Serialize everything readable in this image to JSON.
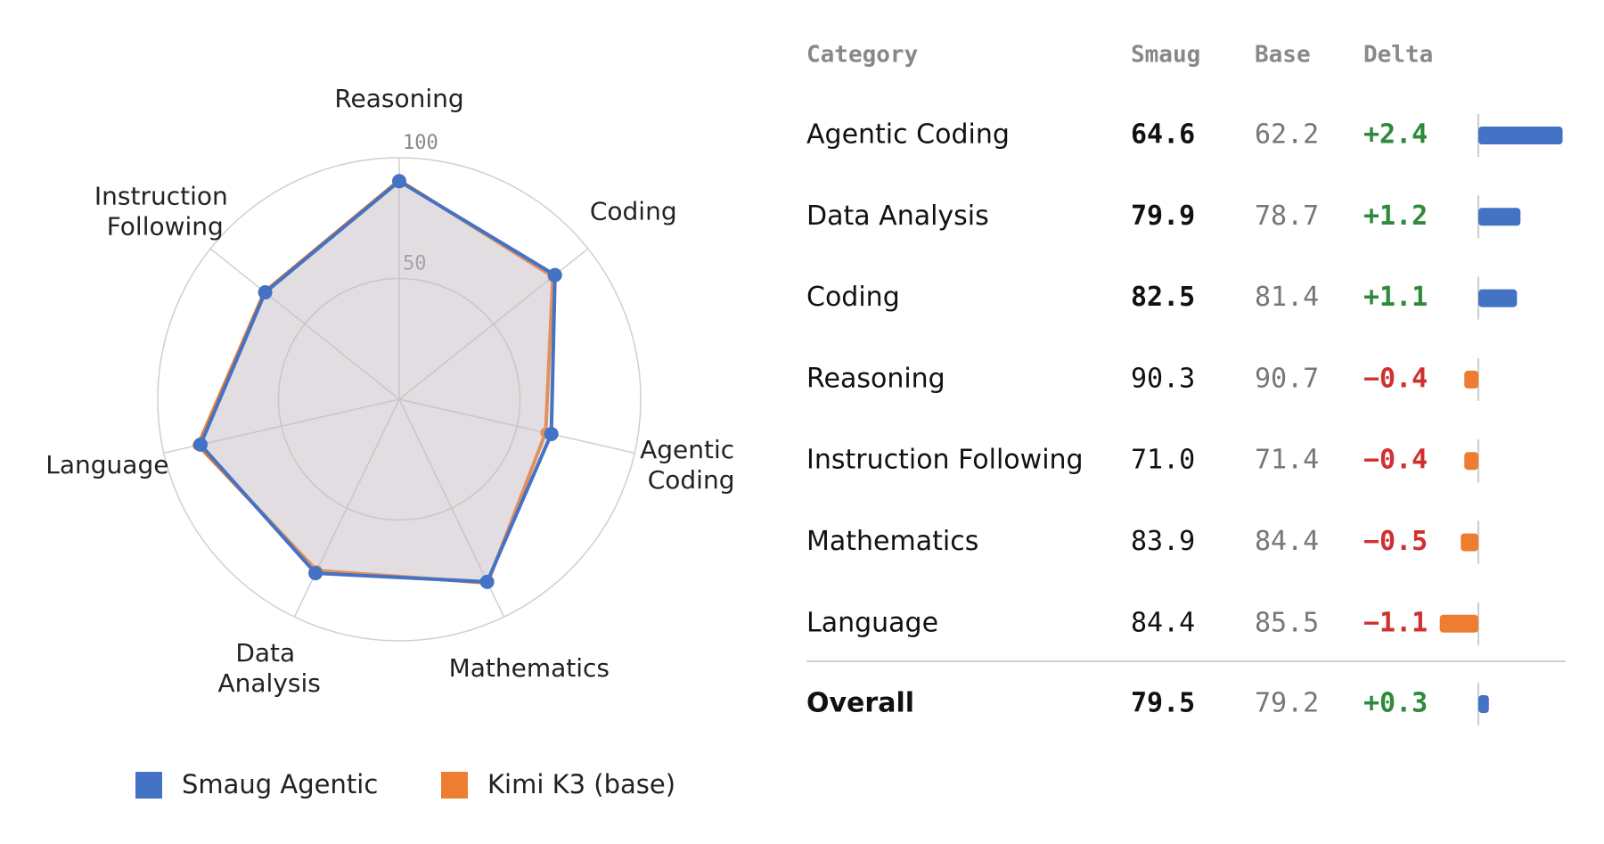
{
  "chart_data": {
    "type": "radar",
    "categories": [
      "Reasoning",
      "Coding",
      "Agentic Coding",
      "Mathematics",
      "Data Analysis",
      "Language",
      "Instruction Following"
    ],
    "rlim": [
      0,
      100
    ],
    "rticks": [
      50,
      100
    ],
    "series": [
      {
        "name": "Smaug Agentic",
        "color": "#4472c4",
        "values": [
          90.3,
          82.5,
          64.6,
          83.9,
          79.9,
          84.4,
          71.0
        ]
      },
      {
        "name": "Kimi K3 (base)",
        "color": "#ed7d31",
        "values": [
          90.7,
          81.4,
          62.2,
          84.4,
          78.7,
          85.5,
          71.4
        ]
      }
    ]
  },
  "table": {
    "columns": [
      "Category",
      "Smaug",
      "Base",
      "Delta"
    ],
    "positive_color": "#4472c4",
    "negative_color": "#ed7d31",
    "rows": [
      {
        "category": "Agentic Coding",
        "smaug": "64.6",
        "base": "62.2",
        "delta": 2.4,
        "delta_label": "+2.4"
      },
      {
        "category": "Data Analysis",
        "smaug": "79.9",
        "base": "78.7",
        "delta": 1.2,
        "delta_label": "+1.2"
      },
      {
        "category": "Coding",
        "smaug": "82.5",
        "base": "81.4",
        "delta": 1.1,
        "delta_label": "+1.1"
      },
      {
        "category": "Reasoning",
        "smaug": "90.3",
        "base": "90.7",
        "delta": -0.4,
        "delta_label": "−0.4"
      },
      {
        "category": "Instruction Following",
        "smaug": "71.0",
        "base": "71.4",
        "delta": -0.4,
        "delta_label": "−0.4"
      },
      {
        "category": "Mathematics",
        "smaug": "83.9",
        "base": "84.4",
        "delta": -0.5,
        "delta_label": "−0.5"
      },
      {
        "category": "Language",
        "smaug": "84.4",
        "base": "85.5",
        "delta": -1.1,
        "delta_label": "−1.1"
      }
    ],
    "overall": {
      "category": "Overall",
      "smaug": "79.5",
      "base": "79.2",
      "delta": 0.3,
      "delta_label": "+0.3"
    }
  }
}
